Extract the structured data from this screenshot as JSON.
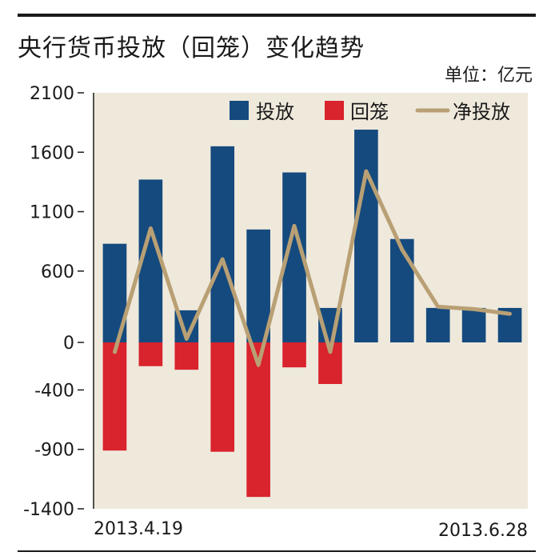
{
  "title": "央行货币投放（回笼）变化趋势",
  "unit": "单位：亿元",
  "colors": {
    "background": "#efe9dc",
    "injection": "#154a7e",
    "withdrawal": "#d9232d",
    "net": "#b9a074"
  },
  "chart_data": {
    "type": "bar",
    "title": "央行货币投放（回笼）变化趋势",
    "ylabel": "单位：亿元",
    "ylim": [
      -1400,
      2100
    ],
    "yticks": [
      2100,
      1600,
      1100,
      600,
      0,
      -400,
      -900,
      -1400
    ],
    "x_start_label": "2013.4.19",
    "x_end_label": "2013.6.28",
    "legend_position": "top-right",
    "series": [
      {
        "name": "投放",
        "type": "bar",
        "values": [
          830,
          1370,
          270,
          1650,
          950,
          1430,
          290,
          1790,
          870,
          290,
          290,
          290
        ]
      },
      {
        "name": "回笼",
        "type": "bar",
        "values": [
          -910,
          -200,
          -230,
          -920,
          -1300,
          -210,
          -350,
          0,
          0,
          0,
          0,
          0
        ]
      },
      {
        "name": "净投放",
        "type": "line",
        "values": [
          -80,
          960,
          30,
          700,
          -190,
          980,
          -80,
          1440,
          780,
          300,
          280,
          240
        ]
      }
    ]
  }
}
